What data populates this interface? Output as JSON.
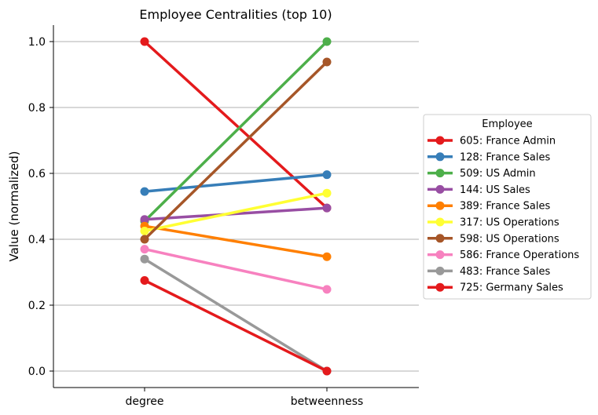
{
  "chart_data": {
    "type": "line",
    "title": "Employee Centralities (top 10)",
    "xlabel": "",
    "ylabel": "Value (normalized)",
    "categories": [
      "degree",
      "betweenness"
    ],
    "ylim": [
      -0.05,
      1.05
    ],
    "yticks": [
      "0.0",
      "0.2",
      "0.4",
      "0.6",
      "0.8",
      "1.0"
    ],
    "grid": "horizontal",
    "legend": {
      "title": "Employee",
      "placement": "right"
    },
    "series": [
      {
        "name": "605: France Admin",
        "color": "#e41a1c",
        "values": [
          1.0,
          0.495
        ]
      },
      {
        "name": "128: France Sales",
        "color": "#377eb8",
        "values": [
          0.545,
          0.596
        ]
      },
      {
        "name": "509: US Admin",
        "color": "#4daf4a",
        "values": [
          0.455,
          1.0
        ]
      },
      {
        "name": "144: US Sales",
        "color": "#984ea3",
        "values": [
          0.46,
          0.495
        ]
      },
      {
        "name": "389: France Sales",
        "color": "#ff7f00",
        "values": [
          0.44,
          0.347
        ]
      },
      {
        "name": "317: US Operations",
        "color": "#ffff33",
        "values": [
          0.425,
          0.54
        ]
      },
      {
        "name": "598: US Operations",
        "color": "#a65628",
        "values": [
          0.4,
          0.938
        ]
      },
      {
        "name": "586: France Operations",
        "color": "#f781bf",
        "values": [
          0.37,
          0.248
        ]
      },
      {
        "name": "483: France Sales",
        "color": "#999999",
        "values": [
          0.34,
          0.0
        ]
      },
      {
        "name": "725: Germany Sales",
        "color": "#e41a1c",
        "values": [
          0.275,
          0.0
        ]
      }
    ]
  }
}
